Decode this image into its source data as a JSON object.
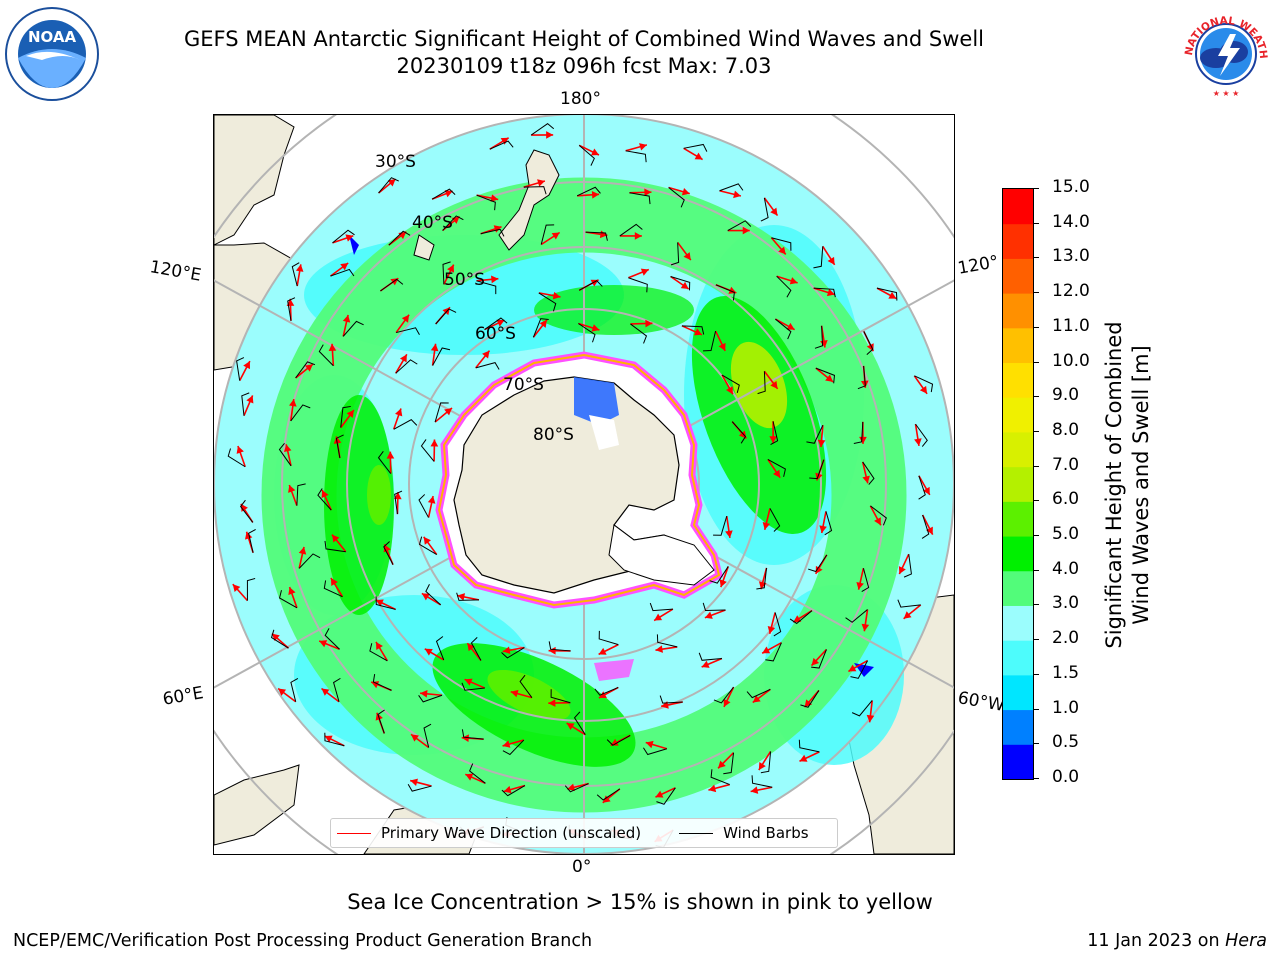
{
  "header": {
    "title_line1": "GEFS MEAN Antarctic Significant Height of Combined Wind Waves and Swell",
    "title_line2": "20230109 t18z 096h fcst   Max: 7.03"
  },
  "logos": {
    "left": "noaa-logo",
    "left_text": "NOAA",
    "right": "nws-logo",
    "right_text": "NATIONAL WEATHER SERVICE"
  },
  "map": {
    "projection": "south-polar-stereographic",
    "lon_labels": {
      "top": "180°",
      "bottom": "0°",
      "left_upper": "120°E",
      "left_lower": "60°E",
      "right_upper": "120°",
      "right_lower": "60°W"
    },
    "lat_labels": [
      "30°S",
      "40°S",
      "50°S",
      "60°S",
      "70°S",
      "80°S"
    ],
    "colors": {
      "land": "#efecdc",
      "ocean_base": "#9bfdfd",
      "ice_edge": "#ff50ff",
      "grid": "#b4b4b4",
      "wave_arrow": "#ff0000",
      "wind_barb": "#000000"
    }
  },
  "legend": {
    "wave_label": "Primary Wave Direction (unscaled)",
    "wave_color": "#ff0000",
    "barb_label": "Wind Barbs",
    "barb_color": "#000000"
  },
  "colorbar": {
    "label_line1": "Significant Height of Combined",
    "label_line2": "Wind Waves and Swell [m]",
    "ticks": [
      "0.0",
      "0.5",
      "1.0",
      "1.5",
      "2.0",
      "3.0",
      "4.0",
      "5.0",
      "6.0",
      "7.0",
      "8.0",
      "9.0",
      "10.0",
      "11.0",
      "12.0",
      "13.0",
      "14.0",
      "15.0"
    ],
    "colors": [
      "#0000ff",
      "#0080ff",
      "#00e6ff",
      "#4dfcfc",
      "#9bfdfd",
      "#52fc7a",
      "#00f000",
      "#5cf000",
      "#b4f000",
      "#d8f000",
      "#f0f000",
      "#ffe000",
      "#ffc000",
      "#ff9000",
      "#ff6000",
      "#ff3000",
      "#ff0000"
    ]
  },
  "footer": {
    "sea_ice_note": "Sea Ice Concentration > 15% is shown in pink to yellow",
    "left": "NCEP/EMC/Verification Post Processing Product Generation Branch",
    "right_date": "11 Jan 2023 on ",
    "right_host": "Hera"
  }
}
